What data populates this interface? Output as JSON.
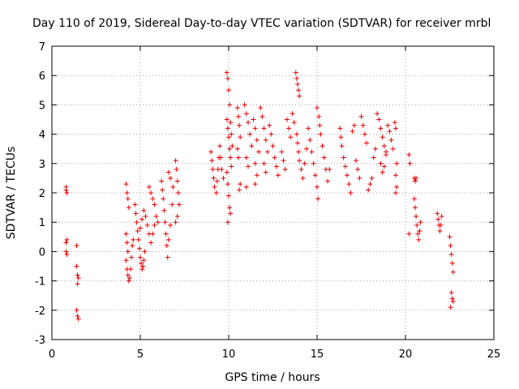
{
  "chart_data": {
    "type": "scatter",
    "title": "Day 110 of 2019, Sidereal Day-to-day VTEC variation (SDTVAR) for receiver mrbl",
    "xlabel": "GPS time / hours",
    "ylabel": "SDTVAR / TECUs",
    "xlim": [
      0,
      25
    ],
    "ylim": [
      -3,
      7
    ],
    "xticks": [
      "0",
      "5",
      "10",
      "15",
      "20",
      "25"
    ],
    "yticks": [
      "-3",
      "-2",
      "-1",
      "0",
      "1",
      "2",
      "3",
      "4",
      "5",
      "6",
      "7"
    ],
    "grid": true,
    "marker": "+",
    "color": "#e00000",
    "series": [
      {
        "name": "SDTVAR",
        "points": [
          [
            0.8,
            2.2
          ],
          [
            0.8,
            2.1
          ],
          [
            0.85,
            2.0
          ],
          [
            0.8,
            0.0
          ],
          [
            0.85,
            -0.1
          ],
          [
            0.8,
            0.3
          ],
          [
            0.85,
            0.4
          ],
          [
            1.4,
            0.2
          ],
          [
            1.4,
            -0.5
          ],
          [
            1.45,
            -0.8
          ],
          [
            1.5,
            -0.9
          ],
          [
            1.45,
            -1.1
          ],
          [
            1.4,
            -2.0
          ],
          [
            1.45,
            -2.2
          ],
          [
            1.5,
            -2.3
          ],
          [
            4.2,
            2.3
          ],
          [
            4.25,
            2.0
          ],
          [
            4.3,
            1.8
          ],
          [
            4.35,
            1.5
          ],
          [
            4.2,
            0.6
          ],
          [
            4.25,
            0.3
          ],
          [
            4.3,
            0.0
          ],
          [
            4.2,
            -0.3
          ],
          [
            4.25,
            -0.6
          ],
          [
            4.3,
            -0.8
          ],
          [
            4.35,
            -1.0
          ],
          [
            4.4,
            -0.9
          ],
          [
            4.45,
            -0.6
          ],
          [
            4.5,
            -0.2
          ],
          [
            4.55,
            0.2
          ],
          [
            4.6,
            0.4
          ],
          [
            4.7,
            1.6
          ],
          [
            4.75,
            1.3
          ],
          [
            4.8,
            1.0
          ],
          [
            4.85,
            0.7
          ],
          [
            4.9,
            0.4
          ],
          [
            4.95,
            0.1
          ],
          [
            5.0,
            -0.2
          ],
          [
            5.05,
            -0.4
          ],
          [
            5.1,
            -0.6
          ],
          [
            5.15,
            -0.5
          ],
          [
            5.2,
            -0.3
          ],
          [
            5.25,
            0.0
          ],
          [
            5.0,
            0.8
          ],
          [
            5.1,
            1.1
          ],
          [
            5.2,
            1.4
          ],
          [
            5.3,
            1.2
          ],
          [
            5.4,
            0.9
          ],
          [
            5.5,
            0.6
          ],
          [
            5.6,
            0.3
          ],
          [
            5.7,
            0.6
          ],
          [
            5.8,
            0.9
          ],
          [
            5.9,
            1.2
          ],
          [
            6.0,
            1.0
          ],
          [
            5.5,
            2.2
          ],
          [
            5.6,
            2.0
          ],
          [
            5.7,
            1.8
          ],
          [
            5.8,
            1.6
          ],
          [
            6.2,
            2.4
          ],
          [
            6.25,
            2.1
          ],
          [
            6.3,
            1.8
          ],
          [
            6.35,
            1.4
          ],
          [
            6.4,
            1.0
          ],
          [
            6.45,
            0.6
          ],
          [
            6.5,
            0.2
          ],
          [
            6.55,
            -0.2
          ],
          [
            6.6,
            0.4
          ],
          [
            6.7,
            0.9
          ],
          [
            6.8,
            1.6
          ],
          [
            6.85,
            2.2
          ],
          [
            6.7,
            2.5
          ],
          [
            6.6,
            2.7
          ],
          [
            7.0,
            3.1
          ],
          [
            7.05,
            2.8
          ],
          [
            7.1,
            2.4
          ],
          [
            7.15,
            2.0
          ],
          [
            7.2,
            1.6
          ],
          [
            7.1,
            1.2
          ],
          [
            7.0,
            1.0
          ],
          [
            9.0,
            3.4
          ],
          [
            9.05,
            3.1
          ],
          [
            9.1,
            2.8
          ],
          [
            9.15,
            2.5
          ],
          [
            9.2,
            2.2
          ],
          [
            9.3,
            2.0
          ],
          [
            9.35,
            2.4
          ],
          [
            9.4,
            2.8
          ],
          [
            9.45,
            3.2
          ],
          [
            9.5,
            3.6
          ],
          [
            9.55,
            3.2
          ],
          [
            9.6,
            2.8
          ],
          [
            9.7,
            2.5
          ],
          [
            9.9,
            6.1
          ],
          [
            9.95,
            5.9
          ],
          [
            10.0,
            5.5
          ],
          [
            10.05,
            5.0
          ],
          [
            9.9,
            4.5
          ],
          [
            9.95,
            4.2
          ],
          [
            10.0,
            3.9
          ],
          [
            10.05,
            3.5
          ],
          [
            9.9,
            2.7
          ],
          [
            9.95,
            2.3
          ],
          [
            10.0,
            1.9
          ],
          [
            10.05,
            1.5
          ],
          [
            10.1,
            1.3
          ],
          [
            9.95,
            1.0
          ],
          [
            10.1,
            4.4
          ],
          [
            10.15,
            4.0
          ],
          [
            10.2,
            3.6
          ],
          [
            10.1,
            3.2
          ],
          [
            10.15,
            2.9
          ],
          [
            10.5,
            4.9
          ],
          [
            10.55,
            4.6
          ],
          [
            10.6,
            4.3
          ],
          [
            10.65,
            3.9
          ],
          [
            10.5,
            3.5
          ],
          [
            10.55,
            3.2
          ],
          [
            10.6,
            2.1
          ],
          [
            10.65,
            2.3
          ],
          [
            10.9,
            5.0
          ],
          [
            11.0,
            4.7
          ],
          [
            11.1,
            4.4
          ],
          [
            11.2,
            4.0
          ],
          [
            11.3,
            3.6
          ],
          [
            11.0,
            3.2
          ],
          [
            11.1,
            2.9
          ],
          [
            11.0,
            2.2
          ],
          [
            11.4,
            4.5
          ],
          [
            11.5,
            4.2
          ],
          [
            11.6,
            3.8
          ],
          [
            11.7,
            3.4
          ],
          [
            11.5,
            3.0
          ],
          [
            11.6,
            2.6
          ],
          [
            11.5,
            2.3
          ],
          [
            11.8,
            4.9
          ],
          [
            11.9,
            4.6
          ],
          [
            12.0,
            4.2
          ],
          [
            12.1,
            3.8
          ],
          [
            12.2,
            3.4
          ],
          [
            12.0,
            3.0
          ],
          [
            12.1,
            2.7
          ],
          [
            12.3,
            4.3
          ],
          [
            12.4,
            4.0
          ],
          [
            12.5,
            3.6
          ],
          [
            12.6,
            3.2
          ],
          [
            12.7,
            2.9
          ],
          [
            12.8,
            2.6
          ],
          [
            13.0,
            3.4
          ],
          [
            13.1,
            3.1
          ],
          [
            13.2,
            2.8
          ],
          [
            13.3,
            4.5
          ],
          [
            13.4,
            4.2
          ],
          [
            13.5,
            3.9
          ],
          [
            13.6,
            4.7
          ],
          [
            13.7,
            4.4
          ],
          [
            13.8,
            6.1
          ],
          [
            13.85,
            5.9
          ],
          [
            13.9,
            5.7
          ],
          [
            13.95,
            5.5
          ],
          [
            14.0,
            5.3
          ],
          [
            13.85,
            4.0
          ],
          [
            13.9,
            3.7
          ],
          [
            13.95,
            3.4
          ],
          [
            14.0,
            3.1
          ],
          [
            14.1,
            2.8
          ],
          [
            14.2,
            2.5
          ],
          [
            14.3,
            3.0
          ],
          [
            14.4,
            3.5
          ],
          [
            14.5,
            4.2
          ],
          [
            14.6,
            3.8
          ],
          [
            14.7,
            3.4
          ],
          [
            14.8,
            3.0
          ],
          [
            14.9,
            2.6
          ],
          [
            15.0,
            2.2
          ],
          [
            15.05,
            1.8
          ],
          [
            15.0,
            4.9
          ],
          [
            15.1,
            4.6
          ],
          [
            15.15,
            4.3
          ],
          [
            15.2,
            4.0
          ],
          [
            15.3,
            3.6
          ],
          [
            15.4,
            3.2
          ],
          [
            15.5,
            2.8
          ],
          [
            15.6,
            2.4
          ],
          [
            15.7,
            2.8
          ],
          [
            16.3,
            4.2
          ],
          [
            16.35,
            3.9
          ],
          [
            16.4,
            3.6
          ],
          [
            16.5,
            3.2
          ],
          [
            16.6,
            2.9
          ],
          [
            16.7,
            2.6
          ],
          [
            16.8,
            2.3
          ],
          [
            16.9,
            2.0
          ],
          [
            17.0,
            4.1
          ],
          [
            17.1,
            4.3
          ],
          [
            17.2,
            3.1
          ],
          [
            17.3,
            2.8
          ],
          [
            17.4,
            2.5
          ],
          [
            17.5,
            4.6
          ],
          [
            17.6,
            4.3
          ],
          [
            17.7,
            4.0
          ],
          [
            17.8,
            3.7
          ],
          [
            17.9,
            2.1
          ],
          [
            18.0,
            2.3
          ],
          [
            18.1,
            2.5
          ],
          [
            18.2,
            3.2
          ],
          [
            18.3,
            3.5
          ],
          [
            18.4,
            4.7
          ],
          [
            18.5,
            4.5
          ],
          [
            18.6,
            4.2
          ],
          [
            18.7,
            3.9
          ],
          [
            18.8,
            3.6
          ],
          [
            18.9,
            3.3
          ],
          [
            18.6,
            3.0
          ],
          [
            18.7,
            2.7
          ],
          [
            18.8,
            2.9
          ],
          [
            18.9,
            3.4
          ],
          [
            19.0,
            4.3
          ],
          [
            19.1,
            4.1
          ],
          [
            19.2,
            3.8
          ],
          [
            19.3,
            3.5
          ],
          [
            19.4,
            4.4
          ],
          [
            19.45,
            4.2
          ],
          [
            19.5,
            3.0
          ],
          [
            19.45,
            2.6
          ],
          [
            19.5,
            2.2
          ],
          [
            19.45,
            2.0
          ],
          [
            20.2,
            3.3
          ],
          [
            20.25,
            3.0
          ],
          [
            20.5,
            2.5
          ],
          [
            20.55,
            2.4
          ],
          [
            20.6,
            2.5
          ],
          [
            20.5,
            1.8
          ],
          [
            20.55,
            1.5
          ],
          [
            20.6,
            1.2
          ],
          [
            20.65,
            0.9
          ],
          [
            20.7,
            0.6
          ],
          [
            20.75,
            0.4
          ],
          [
            20.8,
            0.7
          ],
          [
            20.85,
            1.0
          ],
          [
            20.2,
            0.6
          ],
          [
            21.8,
            1.3
          ],
          [
            21.85,
            1.1
          ],
          [
            21.9,
            0.9
          ],
          [
            21.95,
            0.7
          ],
          [
            22.0,
            0.9
          ],
          [
            22.05,
            1.2
          ],
          [
            22.5,
            0.5
          ],
          [
            22.55,
            0.2
          ],
          [
            22.6,
            -0.1
          ],
          [
            22.65,
            -0.4
          ],
          [
            22.7,
            -0.7
          ],
          [
            22.6,
            -1.4
          ],
          [
            22.65,
            -1.6
          ],
          [
            22.7,
            -1.7
          ],
          [
            22.55,
            -1.9
          ]
        ]
      }
    ]
  }
}
